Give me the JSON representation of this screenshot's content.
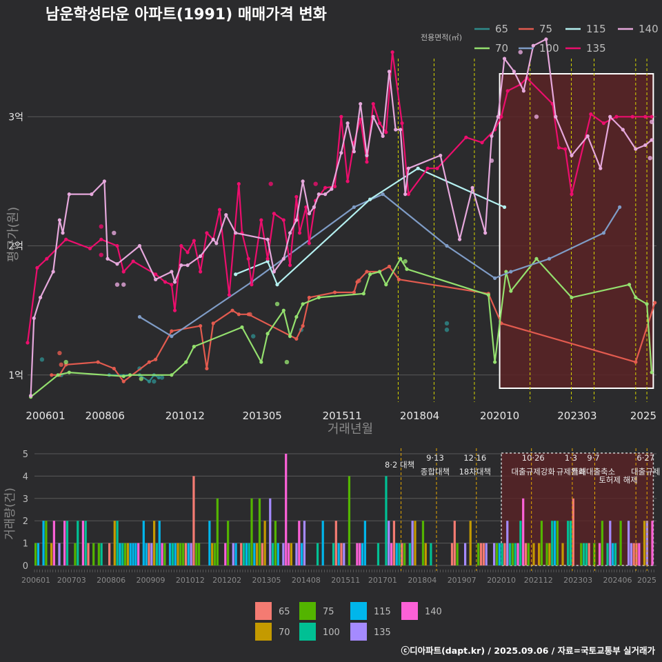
{
  "chart_data": [
    {
      "type": "line",
      "title": "남운학성타운 아파트(1991) 매매가격 변화",
      "ylabel": "평균가(원)",
      "xlabel": "거래년월",
      "legend_title": "전용면적(㎡)",
      "legend_position": "top-right",
      "x_tick_labels": [
        "200601",
        "200806",
        "201012",
        "201305",
        "201511",
        "201804",
        "202010",
        "202303",
        "2025"
      ],
      "y_ticks": [
        1,
        2,
        3
      ],
      "y_tick_labels": [
        "1억",
        "2억",
        "3억"
      ],
      "ylim": [
        0.78,
        3.45
      ],
      "xlim": [
        2006.0,
        2025.65
      ],
      "highlight_period": [
        2020.75,
        2025.55
      ],
      "policy_lines": [
        2017.58,
        2018.7,
        2019.96,
        2021.7,
        2022.99,
        2023.7,
        2025.0,
        2025.35
      ],
      "series": [
        {
          "name": "65",
          "color": "#2e8b8b",
          "x": [
            2008.55,
            2009.5,
            2009.8,
            2009.95,
            2010.1
          ],
          "y": [
            1.0,
            1.0,
            0.95,
            1.0,
            0.98
          ],
          "points": [
            [
              2006.45,
              1.12
            ],
            [
              2007.05,
              1.0
            ],
            [
              2009.5,
              1.05
            ],
            [
              2009.95,
              0.95
            ],
            [
              2010.2,
              0.98
            ],
            [
              2013.05,
              1.3
            ],
            [
              2014.55,
              1.35
            ],
            [
              2019.1,
              1.35
            ],
            [
              2019.1,
              1.4
            ]
          ]
        },
        {
          "name": "75",
          "color": "#e35b4f",
          "x": [
            2006.75,
            2007.0,
            2007.2,
            2008.2,
            2008.7,
            2009.0,
            2009.8,
            2010.0,
            2010.5,
            2011.4,
            2011.6,
            2011.8,
            2012.4,
            2012.6,
            2012.9,
            2014.4,
            2014.6,
            2014.8,
            2015.6,
            2016.2,
            2016.3,
            2016.6,
            2017.0,
            2017.3,
            2017.6,
            2020.4,
            2020.8,
            2025.0,
            2025.6
          ],
          "y": [
            1.0,
            1.0,
            1.08,
            1.1,
            1.05,
            0.95,
            1.1,
            1.12,
            1.34,
            1.38,
            1.05,
            1.4,
            1.5,
            1.47,
            1.47,
            1.28,
            1.38,
            1.6,
            1.64,
            1.64,
            1.72,
            1.8,
            1.8,
            1.84,
            1.74,
            1.63,
            1.4,
            1.1,
            1.56
          ],
          "points": [
            [
              2007.0,
              1.17
            ],
            [
              2007.05,
              1.08
            ],
            [
              2012.95,
              1.47
            ],
            [
              2016.35,
              1.73
            ]
          ]
        },
        {
          "name": "70",
          "color": "#94e06e",
          "x": [
            2006.1,
            2006.95,
            2007.3,
            2009.0,
            2009.2,
            2010.5,
            2010.95,
            2011.2,
            2012.7,
            2013.3,
            2013.5,
            2014.0,
            2014.2,
            2014.4,
            2014.6,
            2015.1,
            2016.5,
            2016.7,
            2017.0,
            2017.2,
            2017.65,
            2017.85,
            2020.4,
            2020.6,
            2020.95,
            2021.1,
            2021.9,
            2023.0,
            2024.8,
            2025.0,
            2025.35,
            2025.5
          ],
          "y": [
            0.83,
            1.0,
            1.02,
            0.99,
            1.0,
            1.0,
            1.1,
            1.22,
            1.37,
            1.1,
            1.32,
            1.5,
            1.3,
            1.45,
            1.55,
            1.6,
            1.63,
            1.78,
            1.8,
            1.7,
            1.9,
            1.82,
            1.62,
            1.1,
            1.8,
            1.65,
            1.9,
            1.6,
            1.7,
            1.6,
            1.55,
            1.02
          ],
          "points": [
            [
              2007.2,
              1.1
            ],
            [
              2009.55,
              0.97
            ],
            [
              2013.8,
              1.55
            ],
            [
              2014.1,
              1.1
            ],
            [
              2017.8,
              1.88
            ]
          ]
        },
        {
          "name": "100",
          "color": "#7f9cc6",
          "x": [
            2009.5,
            2010.5,
            2013.0,
            2016.2,
            2017.1,
            2019.1,
            2020.6,
            2021.1,
            2022.3,
            2024.0,
            2024.5
          ],
          "y": [
            1.45,
            1.3,
            1.72,
            2.3,
            2.4,
            2.0,
            1.75,
            1.8,
            1.9,
            2.1,
            2.3
          ],
          "points": []
        },
        {
          "name": "115",
          "color": "#b4f0f0",
          "x": [
            2012.5,
            2013.5,
            2013.8,
            2016.7,
            2018.2,
            2020.9
          ],
          "y": [
            1.78,
            1.88,
            1.7,
            2.36,
            2.6,
            2.3
          ],
          "points": []
        },
        {
          "name": "135",
          "color": "#ec0e6d",
          "x": [
            2006.0,
            2006.3,
            2006.6,
            2007.2,
            2007.95,
            2008.3,
            2008.8,
            2009.0,
            2009.3,
            2010.0,
            2010.3,
            2010.5,
            2010.6,
            2010.8,
            2011.0,
            2011.2,
            2011.4,
            2011.6,
            2011.8,
            2012.0,
            2012.3,
            2012.6,
            2012.7,
            2012.9,
            2013.0,
            2013.3,
            2013.5,
            2013.7,
            2014.0,
            2014.2,
            2014.4,
            2014.5,
            2014.7,
            2014.8,
            2015.0,
            2015.3,
            2015.6,
            2015.8,
            2016.0,
            2016.2,
            2016.4,
            2016.6,
            2016.8,
            2017.0,
            2017.2,
            2017.4,
            2017.7,
            2017.9,
            2018.5,
            2018.8,
            2019.7,
            2020.2,
            2020.6,
            2020.8,
            2021.0,
            2021.4,
            2021.6,
            2022.4,
            2022.6,
            2022.8,
            2023.0,
            2023.6,
            2024.0,
            2024.4,
            2024.9,
            2025.3,
            2025.5
          ],
          "y": [
            1.25,
            1.83,
            1.9,
            2.05,
            1.98,
            2.05,
            2.0,
            1.8,
            1.88,
            1.78,
            1.72,
            1.7,
            1.5,
            2.0,
            1.95,
            2.04,
            1.8,
            2.1,
            2.05,
            2.28,
            1.62,
            2.48,
            2.1,
            1.9,
            1.7,
            2.2,
            1.9,
            2.25,
            2.2,
            1.85,
            2.38,
            2.1,
            2.3,
            2.02,
            2.35,
            2.45,
            2.46,
            3.0,
            2.5,
            2.8,
            2.98,
            2.65,
            3.1,
            2.95,
            2.88,
            3.5,
            2.95,
            2.4,
            2.6,
            2.6,
            2.84,
            2.8,
            2.9,
            3.0,
            3.2,
            3.25,
            3.3,
            3.1,
            2.76,
            2.75,
            2.4,
            3.02,
            2.95,
            3.0,
            3.0,
            3.0,
            3.0
          ],
          "points": [
            [
              2008.3,
              2.15
            ],
            [
              2008.3,
              1.93
            ],
            [
              2013.6,
              2.48
            ],
            [
              2015.0,
              2.48
            ]
          ]
        },
        {
          "name": "140",
          "color": "#e6a8dc",
          "x": [
            2006.1,
            2006.2,
            2006.4,
            2006.8,
            2007.0,
            2007.1,
            2007.3,
            2008.0,
            2008.4,
            2008.5,
            2008.8,
            2009.5,
            2010.0,
            2010.5,
            2010.6,
            2010.8,
            2011.0,
            2011.4,
            2011.8,
            2011.9,
            2012.2,
            2012.5,
            2013.5,
            2013.7,
            2014.0,
            2014.2,
            2014.4,
            2014.6,
            2014.8,
            2014.95,
            2015.1,
            2015.3,
            2015.5,
            2015.8,
            2016.0,
            2016.2,
            2016.4,
            2016.6,
            2016.8,
            2017.1,
            2017.3,
            2017.5,
            2017.65,
            2017.8,
            2017.9,
            2018.9,
            2019.5,
            2019.9,
            2020.3,
            2020.5,
            2020.7,
            2020.9,
            2021.2,
            2021.5,
            2021.8,
            2022.2,
            2022.5,
            2023.0,
            2023.5,
            2023.9,
            2024.2,
            2024.6,
            2025.0,
            2025.3,
            2025.5
          ],
          "y": [
            0.84,
            1.44,
            1.6,
            1.8,
            2.2,
            2.1,
            2.4,
            2.4,
            2.5,
            1.9,
            1.86,
            2.0,
            1.74,
            1.8,
            1.72,
            1.85,
            1.85,
            1.92,
            2.05,
            2.02,
            2.24,
            2.1,
            2.05,
            1.8,
            1.9,
            2.1,
            2.2,
            2.5,
            2.25,
            2.3,
            2.4,
            2.4,
            2.44,
            2.72,
            2.95,
            2.73,
            3.1,
            2.7,
            3.0,
            2.85,
            3.35,
            2.9,
            2.9,
            2.4,
            2.6,
            2.7,
            2.05,
            2.45,
            2.1,
            2.85,
            3.0,
            3.45,
            3.35,
            3.2,
            3.55,
            3.6,
            3.0,
            2.7,
            2.85,
            2.6,
            3.0,
            2.9,
            2.75,
            2.78,
            2.82
          ],
          "points": [
            [
              2008.7,
              2.1
            ],
            [
              2008.8,
              1.7
            ],
            [
              2009.0,
              1.7
            ],
            [
              2020.5,
              2.66
            ],
            [
              2021.4,
              3.5
            ],
            [
              2021.9,
              3.0
            ],
            [
              2025.45,
              2.68
            ],
            [
              2025.5,
              2.96
            ]
          ]
        }
      ]
    },
    {
      "type": "bar",
      "ylabel": "거래량(건)",
      "y_ticks": [
        0,
        1,
        2,
        3,
        4,
        5
      ],
      "x_tick_labels": [
        "200601",
        "200703",
        "200806",
        "200909",
        "201012",
        "201202",
        "201305",
        "201408",
        "201511",
        "201701",
        "201804",
        "201907",
        "202010",
        "202112",
        "202303",
        "202406",
        "2025"
      ],
      "legend": [
        "65",
        "70",
        "75",
        "100",
        "115",
        "135",
        "140"
      ],
      "legend_colors": [
        "#f47b72",
        "#c49a00",
        "#53b400",
        "#00c094",
        "#00b6eb",
        "#a58aff",
        "#fb61d7"
      ],
      "annotations": [
        {
          "x": 2017.58,
          "line1": "8·2 대책",
          "line2": ""
        },
        {
          "x": 2018.7,
          "line1": "9·13",
          "line2": "종합대책"
        },
        {
          "x": 2019.96,
          "line1": "12·16",
          "line2": "18차대책"
        },
        {
          "x": 2021.8,
          "line1": "10·26",
          "line2": "대출규제강화"
        },
        {
          "x": 2022.99,
          "line1": "1·3",
          "line2": "규제완화"
        },
        {
          "x": 2023.7,
          "line1": "9·7",
          "line2": "특례대출축소"
        },
        {
          "x": 2025.35,
          "line1": "6·27",
          "line2": "대출규제"
        },
        {
          "x": 2025.1,
          "line1": "",
          "line2": "토허제 해제"
        }
      ]
    }
  ],
  "footer": "ⓒ디아파트(dapt.kr) / 2025.09.06 / 자료=국토교통부 실거래가"
}
